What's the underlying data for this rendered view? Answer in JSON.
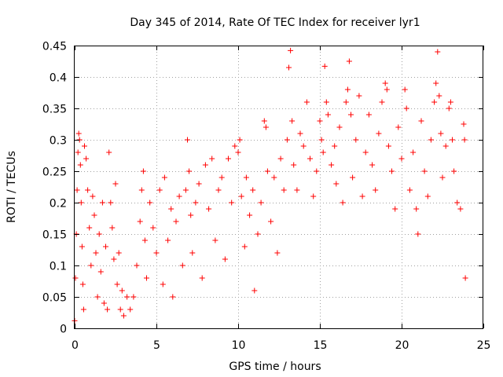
{
  "chart_data": {
    "type": "scatter",
    "title": "Day 345 of 2014, Rate Of TEC Index for receiver lyr1",
    "xlabel": "GPS time / hours",
    "ylabel": "ROTI / TECUs",
    "xlim": [
      0,
      25
    ],
    "ylim": [
      0,
      0.45
    ],
    "xticks": [
      0,
      5,
      10,
      15,
      20,
      25
    ],
    "xtick_labels": [
      "0",
      "5",
      "10",
      "15",
      "20",
      "25"
    ],
    "yticks": [
      0,
      0.05,
      0.1,
      0.15,
      0.2,
      0.25,
      0.3,
      0.35,
      0.4,
      0.45
    ],
    "ytick_labels": [
      "0",
      "0.05",
      "0.1",
      "0.15",
      "0.2",
      "0.25",
      "0.3",
      "0.35",
      "0.4",
      "0.45"
    ],
    "grid": true,
    "marker": "+",
    "color": "#ff0000",
    "series": [
      {
        "name": "ROTI",
        "points": [
          [
            0.0,
            0.012
          ],
          [
            0.05,
            0.08
          ],
          [
            0.1,
            0.15
          ],
          [
            0.15,
            0.22
          ],
          [
            0.2,
            0.28
          ],
          [
            0.25,
            0.31
          ],
          [
            0.3,
            0.3
          ],
          [
            0.35,
            0.26
          ],
          [
            0.4,
            0.2
          ],
          [
            0.45,
            0.13
          ],
          [
            0.5,
            0.07
          ],
          [
            0.55,
            0.03
          ],
          [
            0.6,
            0.29
          ],
          [
            0.7,
            0.27
          ],
          [
            0.8,
            0.22
          ],
          [
            0.9,
            0.16
          ],
          [
            1.0,
            0.1
          ],
          [
            1.1,
            0.21
          ],
          [
            1.2,
            0.18
          ],
          [
            1.3,
            0.12
          ],
          [
            1.4,
            0.05
          ],
          [
            1.5,
            0.15
          ],
          [
            1.6,
            0.09
          ],
          [
            1.7,
            0.2
          ],
          [
            1.8,
            0.04
          ],
          [
            1.9,
            0.13
          ],
          [
            2.0,
            0.03
          ],
          [
            2.1,
            0.28
          ],
          [
            2.2,
            0.2
          ],
          [
            2.3,
            0.16
          ],
          [
            2.4,
            0.11
          ],
          [
            2.5,
            0.23
          ],
          [
            2.6,
            0.07
          ],
          [
            2.7,
            0.12
          ],
          [
            2.8,
            0.03
          ],
          [
            2.9,
            0.06
          ],
          [
            3.0,
            0.02
          ],
          [
            3.2,
            0.05
          ],
          [
            3.4,
            0.03
          ],
          [
            3.6,
            0.05
          ],
          [
            3.8,
            0.1
          ],
          [
            4.0,
            0.17
          ],
          [
            4.1,
            0.22
          ],
          [
            4.2,
            0.25
          ],
          [
            4.3,
            0.14
          ],
          [
            4.4,
            0.08
          ],
          [
            4.6,
            0.2
          ],
          [
            4.8,
            0.16
          ],
          [
            5.0,
            0.12
          ],
          [
            5.2,
            0.22
          ],
          [
            5.4,
            0.07
          ],
          [
            5.5,
            0.24
          ],
          [
            5.7,
            0.14
          ],
          [
            5.9,
            0.19
          ],
          [
            6.0,
            0.05
          ],
          [
            6.2,
            0.17
          ],
          [
            6.4,
            0.21
          ],
          [
            6.6,
            0.1
          ],
          [
            6.8,
            0.22
          ],
          [
            6.9,
            0.3
          ],
          [
            7.0,
            0.25
          ],
          [
            7.1,
            0.18
          ],
          [
            7.2,
            0.12
          ],
          [
            7.4,
            0.2
          ],
          [
            7.6,
            0.23
          ],
          [
            7.8,
            0.08
          ],
          [
            8.0,
            0.26
          ],
          [
            8.2,
            0.19
          ],
          [
            8.4,
            0.27
          ],
          [
            8.6,
            0.14
          ],
          [
            8.8,
            0.22
          ],
          [
            9.0,
            0.24
          ],
          [
            9.2,
            0.11
          ],
          [
            9.4,
            0.27
          ],
          [
            9.6,
            0.2
          ],
          [
            9.8,
            0.29
          ],
          [
            10.0,
            0.28
          ],
          [
            10.1,
            0.3
          ],
          [
            10.2,
            0.21
          ],
          [
            10.4,
            0.13
          ],
          [
            10.5,
            0.24
          ],
          [
            10.7,
            0.18
          ],
          [
            10.9,
            0.22
          ],
          [
            11.0,
            0.06
          ],
          [
            11.2,
            0.15
          ],
          [
            11.4,
            0.2
          ],
          [
            11.6,
            0.33
          ],
          [
            11.7,
            0.32
          ],
          [
            11.8,
            0.25
          ],
          [
            12.0,
            0.17
          ],
          [
            12.2,
            0.24
          ],
          [
            12.4,
            0.12
          ],
          [
            12.6,
            0.27
          ],
          [
            12.8,
            0.22
          ],
          [
            13.0,
            0.3
          ],
          [
            13.1,
            0.415
          ],
          [
            13.2,
            0.442
          ],
          [
            13.3,
            0.33
          ],
          [
            13.4,
            0.26
          ],
          [
            13.6,
            0.22
          ],
          [
            13.8,
            0.31
          ],
          [
            14.0,
            0.29
          ],
          [
            14.2,
            0.36
          ],
          [
            14.4,
            0.27
          ],
          [
            14.6,
            0.21
          ],
          [
            14.8,
            0.25
          ],
          [
            15.0,
            0.33
          ],
          [
            15.1,
            0.3
          ],
          [
            15.2,
            0.28
          ],
          [
            15.3,
            0.417
          ],
          [
            15.4,
            0.36
          ],
          [
            15.5,
            0.34
          ],
          [
            15.7,
            0.26
          ],
          [
            15.9,
            0.29
          ],
          [
            16.0,
            0.23
          ],
          [
            16.2,
            0.32
          ],
          [
            16.4,
            0.2
          ],
          [
            16.6,
            0.36
          ],
          [
            16.7,
            0.38
          ],
          [
            16.8,
            0.425
          ],
          [
            16.9,
            0.34
          ],
          [
            17.0,
            0.24
          ],
          [
            17.2,
            0.3
          ],
          [
            17.4,
            0.37
          ],
          [
            17.6,
            0.21
          ],
          [
            17.8,
            0.28
          ],
          [
            18.0,
            0.34
          ],
          [
            18.2,
            0.26
          ],
          [
            18.4,
            0.22
          ],
          [
            18.6,
            0.31
          ],
          [
            18.8,
            0.36
          ],
          [
            19.0,
            0.39
          ],
          [
            19.1,
            0.38
          ],
          [
            19.2,
            0.29
          ],
          [
            19.4,
            0.25
          ],
          [
            19.6,
            0.19
          ],
          [
            19.8,
            0.32
          ],
          [
            20.0,
            0.27
          ],
          [
            20.2,
            0.38
          ],
          [
            20.3,
            0.35
          ],
          [
            20.5,
            0.22
          ],
          [
            20.7,
            0.28
          ],
          [
            20.9,
            0.19
          ],
          [
            21.0,
            0.15
          ],
          [
            21.2,
            0.33
          ],
          [
            21.4,
            0.25
          ],
          [
            21.6,
            0.21
          ],
          [
            21.8,
            0.3
          ],
          [
            22.0,
            0.36
          ],
          [
            22.1,
            0.39
          ],
          [
            22.2,
            0.44
          ],
          [
            22.3,
            0.37
          ],
          [
            22.4,
            0.31
          ],
          [
            22.5,
            0.24
          ],
          [
            22.7,
            0.29
          ],
          [
            22.9,
            0.35
          ],
          [
            23.0,
            0.36
          ],
          [
            23.1,
            0.3
          ],
          [
            23.2,
            0.25
          ],
          [
            23.4,
            0.2
          ],
          [
            23.6,
            0.19
          ],
          [
            23.8,
            0.325
          ],
          [
            23.85,
            0.3
          ],
          [
            23.9,
            0.08
          ]
        ]
      }
    ]
  }
}
